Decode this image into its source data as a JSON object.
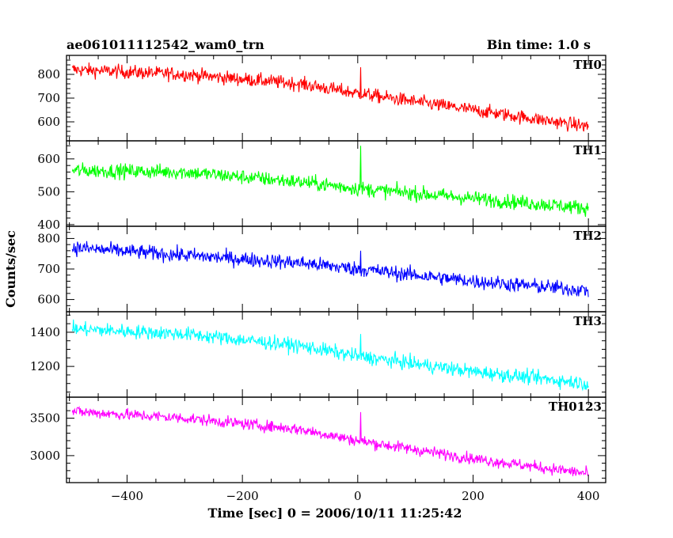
{
  "title_left": "ae061011112542_wam0_trn",
  "title_right": "Bin time: 1.0 s",
  "ylabel": "Counts/sec",
  "xlabel": "Time [sec] 0 = 2006/10/11 11:25:42",
  "chart_data": {
    "type": "line",
    "xlabel": "Time [sec] 0 = 2006/10/11 11:25:42",
    "ylabel": "Counts/sec",
    "xlim": [
      -505,
      430
    ],
    "xticks": [
      -400,
      -200,
      0,
      200,
      400
    ],
    "bin_time_s": 1.0,
    "panels": [
      {
        "name": "TH0",
        "color": "#ff0000",
        "ylim": [
          520,
          880
        ],
        "yticks": [
          600,
          700,
          800
        ],
        "trend": [
          [
            -495,
            820
          ],
          [
            -300,
            800
          ],
          [
            -100,
            760
          ],
          [
            0,
            720
          ],
          [
            200,
            650
          ],
          [
            400,
            580
          ]
        ],
        "noise_amplitude": 45,
        "spike": {
          "x": 5,
          "y": 830
        }
      },
      {
        "name": "TH1",
        "color": "#00ff00",
        "ylim": [
          395,
          655
        ],
        "yticks": [
          400,
          500,
          600
        ],
        "trend": [
          [
            -495,
            565
          ],
          [
            -300,
            560
          ],
          [
            -100,
            530
          ],
          [
            0,
            510
          ],
          [
            200,
            480
          ],
          [
            400,
            450
          ]
        ],
        "noise_amplitude": 35,
        "spike": {
          "x": 5,
          "y": 640
        }
      },
      {
        "name": "TH2",
        "color": "#0000ff",
        "ylim": [
          560,
          840
        ],
        "yticks": [
          600,
          700,
          800
        ],
        "trend": [
          [
            -495,
            770
          ],
          [
            -300,
            745
          ],
          [
            -100,
            720
          ],
          [
            0,
            700
          ],
          [
            200,
            660
          ],
          [
            400,
            630
          ]
        ],
        "noise_amplitude": 38,
        "spike": {
          "x": 5,
          "y": 760
        }
      },
      {
        "name": "TH3",
        "color": "#00ffff",
        "ylim": [
          1020,
          1520
        ],
        "yticks": [
          1200,
          1400
        ],
        "trend": [
          [
            -495,
            1420
          ],
          [
            -300,
            1390
          ],
          [
            -100,
            1320
          ],
          [
            0,
            1260
          ],
          [
            200,
            1170
          ],
          [
            400,
            1100
          ]
        ],
        "noise_amplitude": 65,
        "spike": {
          "x": 5,
          "y": 1390
        }
      },
      {
        "name": "TH0123",
        "color": "#ff00ff",
        "ylim": [
          2640,
          3780
        ],
        "yticks": [
          3000,
          3500
        ],
        "trend": [
          [
            -495,
            3590
          ],
          [
            -300,
            3500
          ],
          [
            -100,
            3350
          ],
          [
            0,
            3200
          ],
          [
            200,
            2960
          ],
          [
            400,
            2760
          ]
        ],
        "noise_amplitude": 120,
        "spike": {
          "x": 5,
          "y": 3580
        }
      }
    ]
  }
}
